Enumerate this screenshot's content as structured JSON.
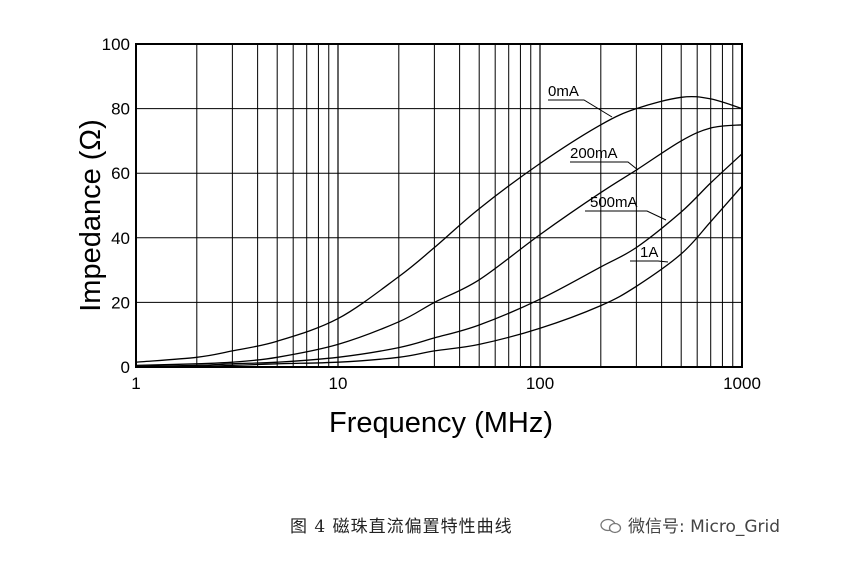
{
  "chart_data": {
    "type": "line",
    "xlabel": "Frequency (MHz)",
    "ylabel": "Impedance (Ω)",
    "xscale": "log",
    "xlim": [
      1,
      1000
    ],
    "ylim": [
      0,
      100
    ],
    "grid": true,
    "x_ticks": [
      {
        "value": 1,
        "label": "1"
      },
      {
        "value": 10,
        "label": "10"
      },
      {
        "value": 100,
        "label": "100"
      },
      {
        "value": 1000,
        "label": "1000"
      }
    ],
    "y_ticks": [
      {
        "value": 0,
        "label": "0"
      },
      {
        "value": 20,
        "label": "20"
      },
      {
        "value": 40,
        "label": "40"
      },
      {
        "value": 60,
        "label": "60"
      },
      {
        "value": 80,
        "label": "80"
      },
      {
        "value": 100,
        "label": "100"
      }
    ],
    "series": [
      {
        "name": "0mA",
        "x": [
          1,
          2,
          3,
          5,
          10,
          20,
          30,
          50,
          100,
          200,
          300,
          500,
          700,
          1000
        ],
        "y": [
          1.5,
          3,
          5,
          8,
          15,
          28,
          37,
          49,
          63,
          75,
          80,
          83.5,
          83,
          80
        ]
      },
      {
        "name": "200mA",
        "x": [
          1,
          2,
          3,
          5,
          10,
          20,
          30,
          50,
          100,
          200,
          300,
          500,
          700,
          1000
        ],
        "y": [
          0.5,
          1,
          1.5,
          3,
          7,
          14,
          20,
          27,
          41,
          54,
          61,
          70,
          74,
          75
        ]
      },
      {
        "name": "500mA",
        "x": [
          1,
          2,
          3,
          5,
          10,
          20,
          30,
          50,
          100,
          200,
          300,
          500,
          700,
          1000
        ],
        "y": [
          0.2,
          0.5,
          1,
          1.5,
          3,
          6,
          9,
          13,
          21,
          31,
          37,
          48,
          57,
          66
        ]
      },
      {
        "name": "1A",
        "x": [
          1,
          2,
          3,
          5,
          10,
          20,
          30,
          50,
          100,
          200,
          300,
          500,
          700,
          1000
        ],
        "y": [
          0.1,
          0.2,
          0.5,
          1,
          1.5,
          3,
          5,
          7,
          12,
          19,
          25,
          35,
          45,
          56
        ]
      }
    ],
    "annotations": [
      {
        "text": "0mA",
        "series": "0mA"
      },
      {
        "text": "200mA",
        "series": "200mA"
      },
      {
        "text": "500mA",
        "series": "500mA"
      },
      {
        "text": "1A",
        "series": "1A"
      }
    ]
  },
  "caption": "图 4 磁珠直流偏置特性曲线",
  "watermark": "微信号: Micro_Grid"
}
